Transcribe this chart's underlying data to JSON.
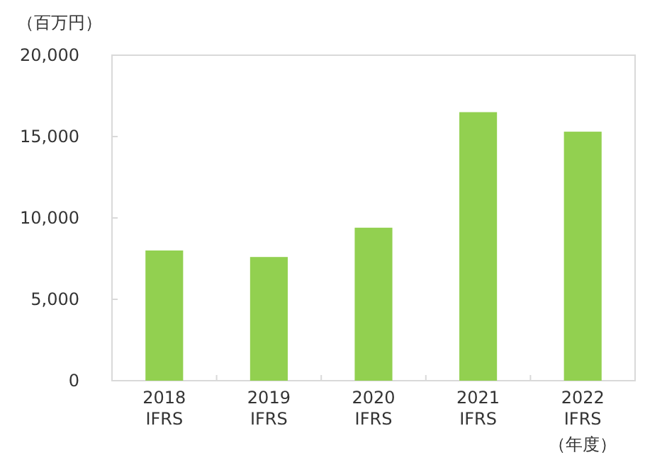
{
  "chart_data": {
    "type": "bar",
    "ylabel": "（百万円）",
    "xlabel": "（年度）",
    "categories": [
      "2018\nIFRS",
      "2019\nIFRS",
      "2020\nIFRS",
      "2021\nIFRS",
      "2022\nIFRS"
    ],
    "values": [
      8000,
      7600,
      9400,
      16500,
      15300
    ],
    "color": "#92d050",
    "ylim": [
      0,
      20000
    ],
    "yticks": [
      {
        "value": 0,
        "label": "0"
      },
      {
        "value": 5000,
        "label": "5,000"
      },
      {
        "value": 10000,
        "label": "10,000"
      },
      {
        "value": 15000,
        "label": "15,000"
      },
      {
        "value": 20000,
        "label": "20,000"
      }
    ],
    "grid": false
  }
}
